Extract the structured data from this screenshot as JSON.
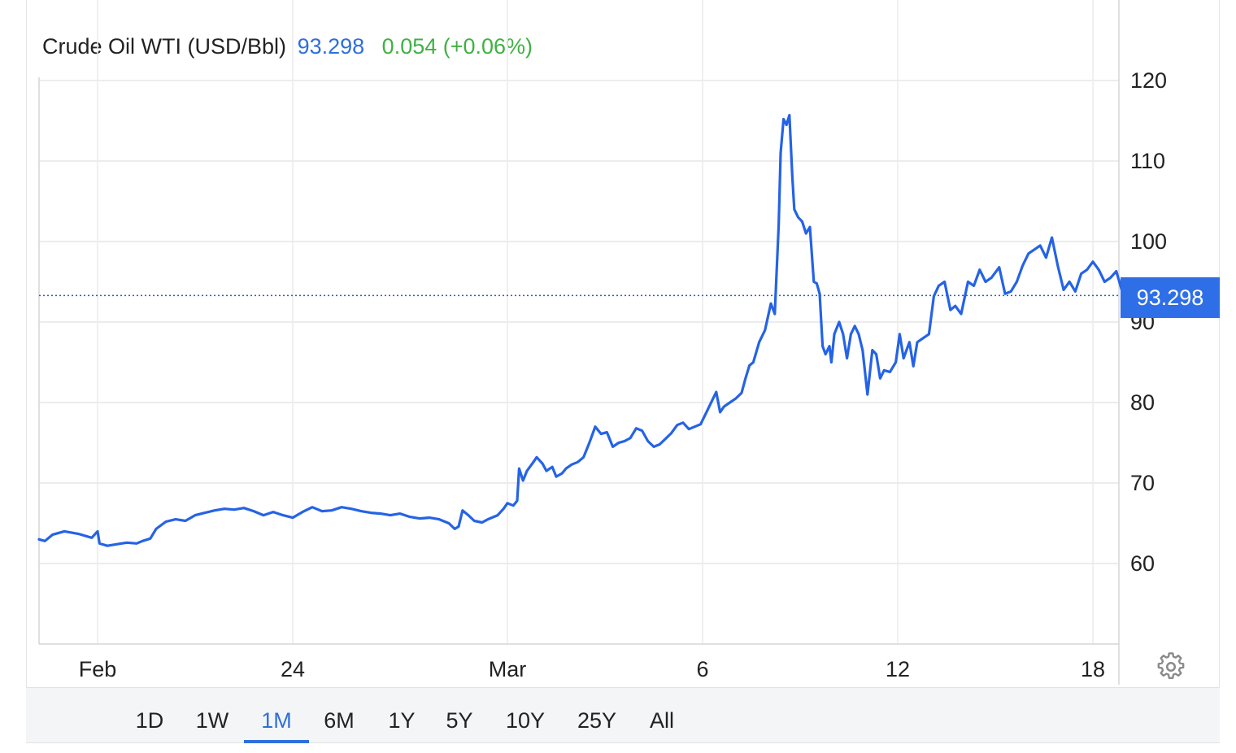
{
  "header": {
    "instrument": "Crude Oil WTI (USD/Bbl)",
    "price": "93.298",
    "change": "0.054 (+0.06%)"
  },
  "price_tag": "93.298",
  "colors": {
    "line": "#2563e6",
    "price": "#2f6fdb",
    "change": "#3fb142",
    "tag": "#2e6fe8"
  },
  "settings_icon": "gear-icon",
  "range_buttons": [
    "1D",
    "1W",
    "1M",
    "6M",
    "1Y",
    "5Y",
    "10Y",
    "25Y",
    "All"
  ],
  "active_range": "1M",
  "chart_data": {
    "type": "line",
    "title": "Crude Oil WTI (USD/Bbl)",
    "xlabel": "",
    "ylabel": "",
    "ylim": [
      50,
      130
    ],
    "y_ticks": [
      60,
      70,
      80,
      90,
      100,
      110,
      120
    ],
    "x_ticks": [
      {
        "label": "Feb",
        "x": 3
      },
      {
        "label": "24",
        "x": 13
      },
      {
        "label": "Mar",
        "x": 24
      },
      {
        "label": "6",
        "x": 34
      },
      {
        "label": "12",
        "x": 44
      },
      {
        "label": "18",
        "x": 54
      }
    ],
    "xlim": [
      0,
      59.2
    ],
    "grid": true,
    "last_value": 93.298,
    "series": [
      {
        "name": "",
        "points": [
          [
            0.0,
            63.0
          ],
          [
            0.3,
            62.8
          ],
          [
            0.7,
            63.6
          ],
          [
            1.3,
            64.0
          ],
          [
            2.0,
            63.7
          ],
          [
            2.7,
            63.2
          ],
          [
            3.0,
            64.0
          ],
          [
            3.1,
            62.5
          ],
          [
            3.5,
            62.2
          ],
          [
            4.0,
            62.4
          ],
          [
            4.5,
            62.6
          ],
          [
            5.0,
            62.5
          ],
          [
            5.3,
            62.8
          ],
          [
            5.7,
            63.1
          ],
          [
            6.0,
            64.3
          ],
          [
            6.5,
            65.2
          ],
          [
            7.0,
            65.5
          ],
          [
            7.5,
            65.3
          ],
          [
            8.0,
            66.0
          ],
          [
            8.5,
            66.3
          ],
          [
            9.0,
            66.6
          ],
          [
            9.5,
            66.8
          ],
          [
            10.0,
            66.7
          ],
          [
            10.5,
            66.9
          ],
          [
            11.0,
            66.5
          ],
          [
            11.5,
            66.0
          ],
          [
            12.0,
            66.4
          ],
          [
            12.5,
            66.0
          ],
          [
            13.0,
            65.7
          ],
          [
            13.5,
            66.4
          ],
          [
            14.0,
            67.0
          ],
          [
            14.5,
            66.5
          ],
          [
            15.0,
            66.6
          ],
          [
            15.5,
            67.0
          ],
          [
            16.0,
            66.8
          ],
          [
            16.5,
            66.5
          ],
          [
            17.0,
            66.3
          ],
          [
            17.5,
            66.2
          ],
          [
            18.0,
            66.0
          ],
          [
            18.5,
            66.2
          ],
          [
            19.0,
            65.8
          ],
          [
            19.5,
            65.6
          ],
          [
            20.0,
            65.7
          ],
          [
            20.5,
            65.5
          ],
          [
            21.0,
            65.0
          ],
          [
            21.3,
            64.3
          ],
          [
            21.5,
            64.6
          ],
          [
            21.7,
            66.6
          ],
          [
            22.0,
            66.0
          ],
          [
            22.3,
            65.3
          ],
          [
            22.7,
            65.1
          ],
          [
            23.0,
            65.5
          ],
          [
            23.5,
            66.0
          ],
          [
            23.8,
            66.8
          ],
          [
            24.0,
            67.5
          ],
          [
            24.3,
            67.2
          ],
          [
            24.5,
            67.8
          ],
          [
            24.6,
            71.8
          ],
          [
            24.8,
            70.3
          ],
          [
            25.0,
            71.5
          ],
          [
            25.3,
            72.5
          ],
          [
            25.5,
            73.2
          ],
          [
            25.8,
            72.4
          ],
          [
            26.0,
            71.5
          ],
          [
            26.3,
            72.0
          ],
          [
            26.5,
            70.8
          ],
          [
            26.8,
            71.2
          ],
          [
            27.0,
            71.8
          ],
          [
            27.3,
            72.3
          ],
          [
            27.6,
            72.6
          ],
          [
            27.9,
            73.2
          ],
          [
            28.2,
            75.0
          ],
          [
            28.5,
            77.0
          ],
          [
            28.8,
            76.1
          ],
          [
            29.1,
            76.3
          ],
          [
            29.4,
            74.5
          ],
          [
            29.7,
            75.0
          ],
          [
            30.0,
            75.2
          ],
          [
            30.3,
            75.6
          ],
          [
            30.6,
            76.8
          ],
          [
            30.9,
            76.5
          ],
          [
            31.2,
            75.2
          ],
          [
            31.5,
            74.5
          ],
          [
            31.8,
            74.8
          ],
          [
            32.1,
            75.5
          ],
          [
            32.4,
            76.2
          ],
          [
            32.7,
            77.2
          ],
          [
            33.0,
            77.5
          ],
          [
            33.3,
            76.7
          ],
          [
            33.6,
            77.0
          ],
          [
            33.9,
            77.3
          ],
          [
            34.2,
            78.8
          ],
          [
            34.5,
            80.3
          ],
          [
            34.7,
            81.3
          ],
          [
            34.9,
            78.8
          ],
          [
            35.1,
            79.5
          ],
          [
            35.4,
            80.0
          ],
          [
            35.7,
            80.5
          ],
          [
            36.0,
            81.2
          ],
          [
            36.2,
            83.0
          ],
          [
            36.4,
            84.6
          ],
          [
            36.6,
            85.0
          ],
          [
            36.9,
            87.5
          ],
          [
            37.2,
            89.0
          ],
          [
            37.5,
            92.3
          ],
          [
            37.7,
            91.0
          ],
          [
            37.9,
            102.0
          ],
          [
            38.0,
            111.0
          ],
          [
            38.15,
            115.2
          ],
          [
            38.3,
            114.5
          ],
          [
            38.45,
            115.7
          ],
          [
            38.6,
            108.0
          ],
          [
            38.7,
            104.0
          ],
          [
            38.9,
            103.0
          ],
          [
            39.1,
            102.5
          ],
          [
            39.3,
            101.0
          ],
          [
            39.5,
            101.8
          ],
          [
            39.7,
            95.0
          ],
          [
            39.85,
            94.8
          ],
          [
            40.0,
            93.5
          ],
          [
            40.15,
            87.0
          ],
          [
            40.3,
            86.0
          ],
          [
            40.5,
            87.0
          ],
          [
            40.6,
            85.0
          ],
          [
            40.75,
            88.5
          ],
          [
            41.0,
            90.0
          ],
          [
            41.2,
            88.5
          ],
          [
            41.4,
            85.5
          ],
          [
            41.6,
            88.5
          ],
          [
            41.8,
            89.5
          ],
          [
            42.0,
            88.5
          ],
          [
            42.2,
            86.5
          ],
          [
            42.45,
            81.0
          ],
          [
            42.7,
            86.5
          ],
          [
            42.9,
            86.0
          ],
          [
            43.1,
            83.0
          ],
          [
            43.3,
            84.0
          ],
          [
            43.6,
            83.8
          ],
          [
            43.9,
            85.0
          ],
          [
            44.1,
            88.5
          ],
          [
            44.3,
            85.5
          ],
          [
            44.6,
            87.5
          ],
          [
            44.8,
            84.5
          ],
          [
            45.0,
            87.5
          ],
          [
            45.3,
            88.0
          ],
          [
            45.6,
            88.5
          ],
          [
            45.85,
            93.2
          ],
          [
            46.1,
            94.5
          ],
          [
            46.4,
            95.0
          ],
          [
            46.7,
            91.5
          ],
          [
            46.95,
            92.0
          ],
          [
            47.25,
            91.0
          ],
          [
            47.6,
            95.0
          ],
          [
            47.9,
            94.5
          ],
          [
            48.2,
            96.5
          ],
          [
            48.5,
            95.0
          ],
          [
            48.8,
            95.5
          ],
          [
            49.2,
            96.8
          ],
          [
            49.5,
            93.5
          ],
          [
            49.8,
            93.8
          ],
          [
            50.1,
            95.0
          ],
          [
            50.4,
            97.0
          ],
          [
            50.7,
            98.5
          ],
          [
            51.0,
            99.0
          ],
          [
            51.3,
            99.5
          ],
          [
            51.6,
            98.0
          ],
          [
            51.9,
            100.5
          ],
          [
            52.2,
            97.0
          ],
          [
            52.5,
            94.0
          ],
          [
            52.8,
            95.0
          ],
          [
            53.1,
            93.8
          ],
          [
            53.4,
            96.0
          ],
          [
            53.7,
            96.5
          ],
          [
            54.0,
            97.5
          ],
          [
            54.3,
            96.5
          ],
          [
            54.6,
            95.0
          ],
          [
            54.9,
            95.5
          ],
          [
            55.2,
            96.3
          ],
          [
            55.5,
            93.8
          ],
          [
            55.8,
            93.4
          ],
          [
            56.1,
            93.2
          ],
          [
            56.4,
            93.3
          ]
        ]
      }
    ]
  }
}
